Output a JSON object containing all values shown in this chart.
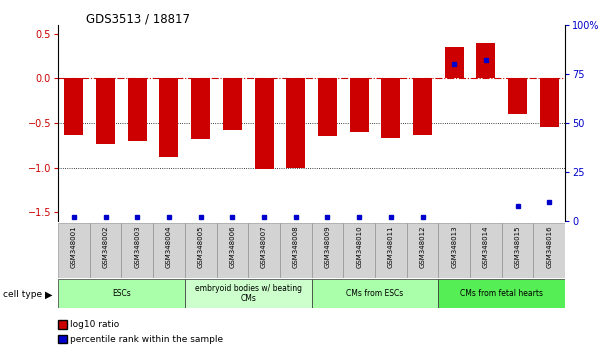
{
  "title": "GDS3513 / 18817",
  "samples": [
    "GSM348001",
    "GSM348002",
    "GSM348003",
    "GSM348004",
    "GSM348005",
    "GSM348006",
    "GSM348007",
    "GSM348008",
    "GSM348009",
    "GSM348010",
    "GSM348011",
    "GSM348012",
    "GSM348013",
    "GSM348014",
    "GSM348015",
    "GSM348016"
  ],
  "log10_ratio": [
    -0.63,
    -0.73,
    -0.7,
    -0.88,
    -0.68,
    -0.58,
    -1.02,
    -1.0,
    -0.65,
    -0.6,
    -0.67,
    -0.63,
    0.35,
    0.4,
    -0.4,
    -0.55
  ],
  "percentile_rank": [
    2,
    2,
    2,
    2,
    2,
    2,
    2,
    2,
    2,
    2,
    2,
    2,
    80,
    82,
    8,
    10
  ],
  "cell_types": [
    {
      "label": "ESCs",
      "start": 0,
      "end": 4,
      "color": "#aaffaa"
    },
    {
      "label": "embryoid bodies w/ beating\nCMs",
      "start": 4,
      "end": 8,
      "color": "#ccffcc"
    },
    {
      "label": "CMs from ESCs",
      "start": 8,
      "end": 12,
      "color": "#aaffaa"
    },
    {
      "label": "CMs from fetal hearts",
      "start": 12,
      "end": 16,
      "color": "#55ee55"
    }
  ],
  "bar_color": "#cc0000",
  "pct_color": "#0000cc",
  "ylim_left": [
    -1.6,
    0.6
  ],
  "ylim_right": [
    0,
    100
  ],
  "yticks_left": [
    -1.5,
    -1.0,
    -0.5,
    0,
    0.5
  ],
  "yticks_right": [
    0,
    25,
    50,
    75,
    100
  ],
  "hline_zero_color": "#cc0000",
  "hline_dotted_vals": [
    -0.5,
    -1.0
  ],
  "background_color": "#ffffff"
}
